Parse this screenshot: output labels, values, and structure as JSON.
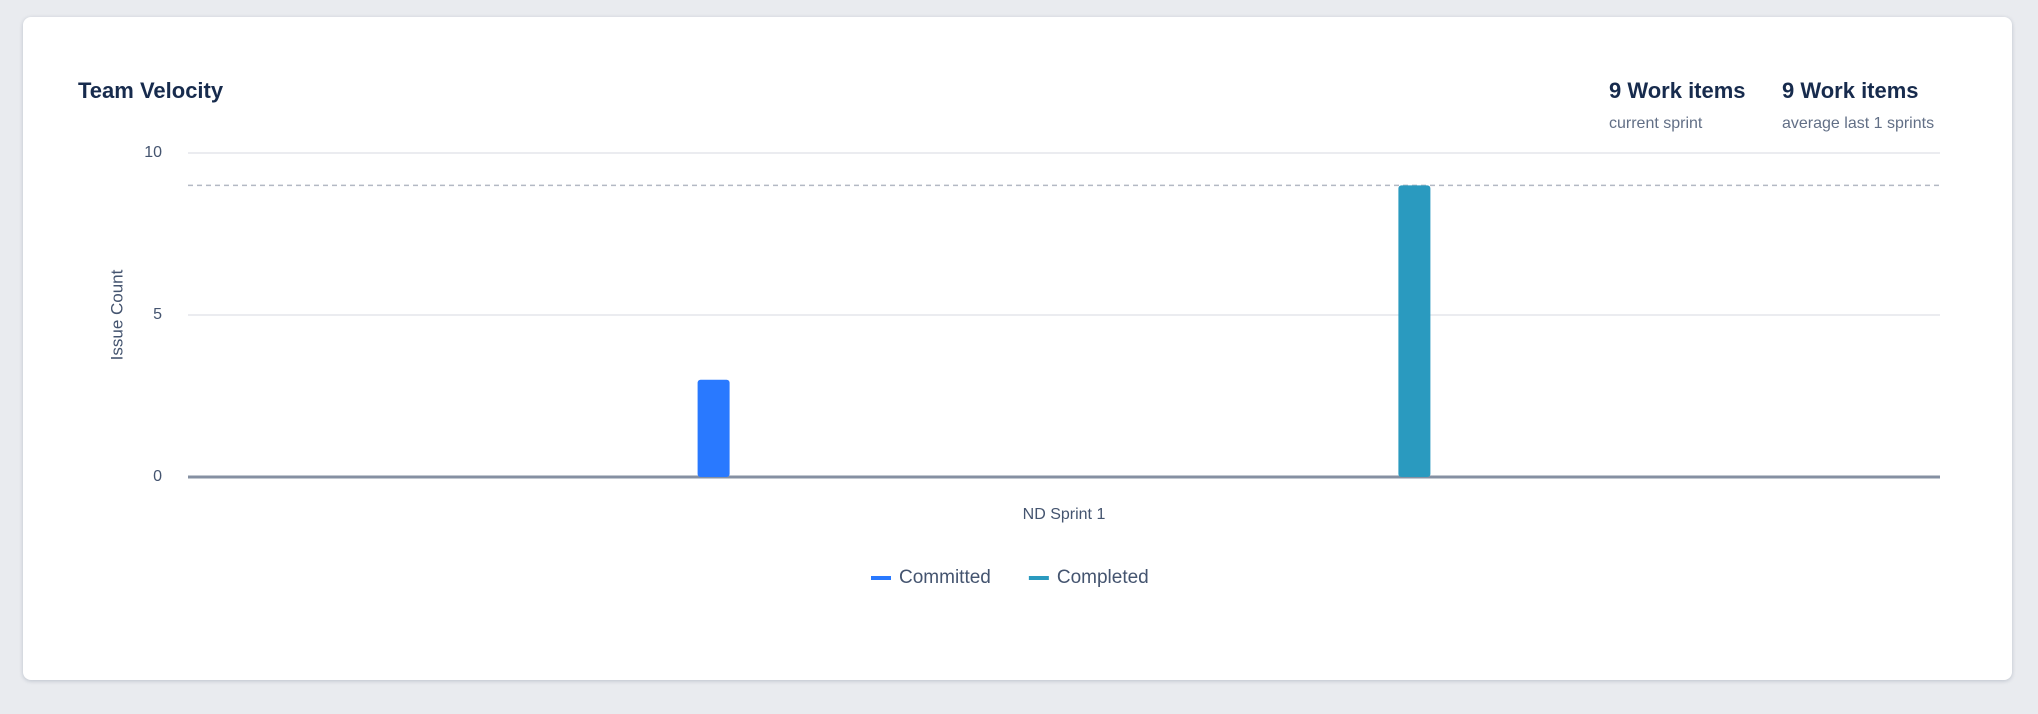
{
  "chart_data": {
    "type": "bar",
    "title": "Team Velocity",
    "y_label": "Issue Count",
    "categories": [
      "ND Sprint 1"
    ],
    "series": [
      {
        "name": "Committed",
        "color": "#2979ff",
        "values": [
          3
        ]
      },
      {
        "name": "Completed",
        "color": "#2a9abf",
        "values": [
          9
        ]
      }
    ],
    "average_line": 9,
    "ylim": [
      0,
      10
    ],
    "yticks": [
      0,
      5,
      10
    ],
    "grid": true,
    "stats": [
      {
        "value": "9 Work items",
        "caption": "current sprint"
      },
      {
        "value": "9 Work items",
        "caption": "average last 1 sprints"
      }
    ]
  }
}
